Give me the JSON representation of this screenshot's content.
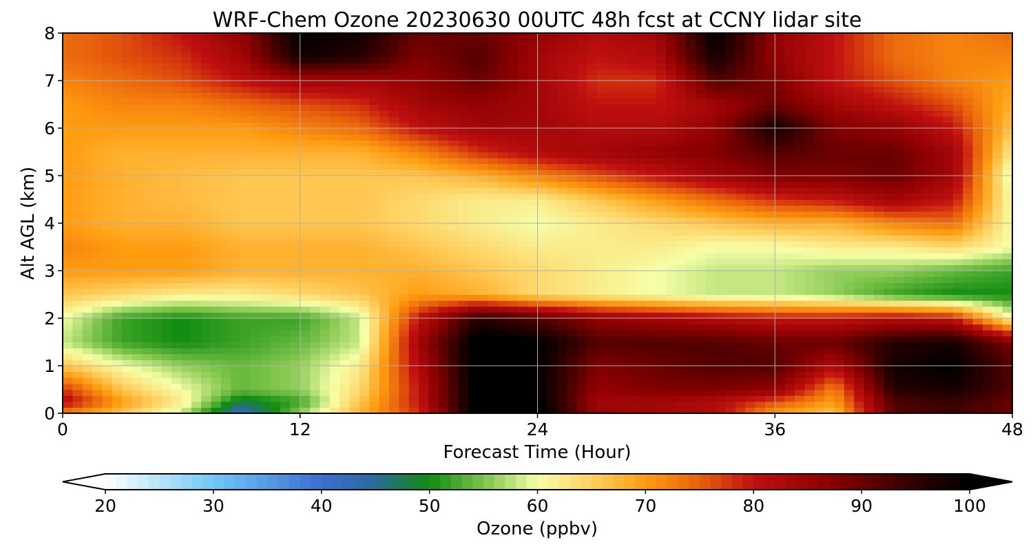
{
  "chart_data": {
    "type": "heatmap",
    "title": "WRF-Chem Ozone  20230630 00UTC 48h fcst at CCNY lidar site",
    "xlabel": "Forecast Time (Hour)",
    "ylabel": "Alt AGL (km)",
    "xlim": [
      0,
      48
    ],
    "ylim": [
      0,
      8
    ],
    "xticks": [
      0,
      12,
      24,
      36,
      48
    ],
    "yticks": [
      0,
      1,
      2,
      3,
      4,
      5,
      6,
      7,
      8
    ],
    "grid": true,
    "x": [
      0,
      3,
      6,
      9,
      12,
      15,
      18,
      21,
      24,
      27,
      30,
      33,
      36,
      39,
      42,
      45,
      48
    ],
    "y": [
      0,
      0.25,
      0.5,
      1,
      1.5,
      2,
      2.5,
      3,
      3.5,
      4,
      4.5,
      5,
      5.5,
      6,
      6.5,
      7,
      7.5,
      8
    ],
    "z": [
      [
        72,
        66,
        58,
        42,
        56,
        68,
        78,
        102,
        102,
        86,
        84,
        82,
        70,
        66,
        92,
        94,
        90
      ],
      [
        82,
        70,
        62,
        48,
        52,
        66,
        80,
        102,
        101,
        84,
        84,
        82,
        76,
        70,
        92,
        94,
        90
      ],
      [
        78,
        66,
        60,
        54,
        56,
        64,
        80,
        102,
        100,
        86,
        88,
        88,
        86,
        72,
        96,
        98,
        92
      ],
      [
        66,
        60,
        56,
        54,
        56,
        62,
        82,
        102,
        100,
        88,
        90,
        92,
        92,
        82,
        98,
        100,
        92
      ],
      [
        58,
        52,
        50,
        52,
        54,
        58,
        84,
        102,
        100,
        92,
        92,
        92,
        90,
        90,
        96,
        98,
        88
      ],
      [
        60,
        52,
        50,
        52,
        52,
        58,
        80,
        96,
        92,
        86,
        84,
        82,
        80,
        80,
        82,
        80,
        60
      ],
      [
        66,
        64,
        62,
        62,
        64,
        66,
        70,
        68,
        64,
        62,
        60,
        58,
        58,
        56,
        52,
        50,
        50
      ],
      [
        70,
        70,
        70,
        68,
        68,
        68,
        68,
        66,
        64,
        62,
        60,
        58,
        58,
        56,
        56,
        54,
        52
      ],
      [
        72,
        70,
        70,
        68,
        68,
        68,
        66,
        64,
        62,
        62,
        62,
        60,
        60,
        62,
        62,
        64,
        60
      ],
      [
        70,
        68,
        68,
        66,
        66,
        66,
        64,
        62,
        60,
        62,
        64,
        66,
        68,
        68,
        72,
        74,
        60
      ],
      [
        70,
        68,
        67,
        66,
        66,
        66,
        64,
        62,
        62,
        66,
        70,
        74,
        78,
        80,
        84,
        80,
        60
      ],
      [
        70,
        68,
        67,
        66,
        66,
        66,
        66,
        68,
        72,
        76,
        80,
        84,
        88,
        88,
        90,
        84,
        58
      ],
      [
        70,
        68,
        68,
        68,
        68,
        68,
        72,
        78,
        82,
        84,
        86,
        88,
        92,
        90,
        90,
        84,
        62
      ],
      [
        70,
        70,
        70,
        70,
        72,
        74,
        80,
        84,
        84,
        82,
        82,
        86,
        98,
        88,
        86,
        80,
        66
      ],
      [
        70,
        72,
        72,
        74,
        76,
        78,
        84,
        86,
        84,
        80,
        80,
        84,
        90,
        84,
        80,
        76,
        68
      ],
      [
        72,
        74,
        76,
        80,
        84,
        84,
        86,
        90,
        84,
        78,
        78,
        92,
        88,
        80,
        76,
        72,
        70
      ],
      [
        74,
        76,
        78,
        84,
        98,
        96,
        88,
        92,
        84,
        80,
        82,
        98,
        86,
        80,
        74,
        72,
        72
      ],
      [
        74,
        76,
        80,
        86,
        100,
        98,
        90,
        90,
        86,
        82,
        84,
        100,
        86,
        80,
        74,
        72,
        74
      ]
    ],
    "colorbar": {
      "label": "Ozone  (ppbv)",
      "min": 20,
      "max": 100,
      "extend": "both",
      "ticks": [
        20,
        30,
        40,
        50,
        60,
        70,
        80,
        90,
        100
      ],
      "stops": [
        [
          20,
          "#ffffff"
        ],
        [
          30,
          "#6fc8f6"
        ],
        [
          40,
          "#3b6fd0"
        ],
        [
          45,
          "#2a6a9a"
        ],
        [
          50,
          "#108c10"
        ],
        [
          55,
          "#7cc34a"
        ],
        [
          60,
          "#f6ffa8"
        ],
        [
          65,
          "#ffd060"
        ],
        [
          70,
          "#ff9c10"
        ],
        [
          75,
          "#e8600c"
        ],
        [
          80,
          "#c01010"
        ],
        [
          87,
          "#8c0000"
        ],
        [
          94,
          "#3a0000"
        ],
        [
          100,
          "#000000"
        ]
      ]
    }
  }
}
